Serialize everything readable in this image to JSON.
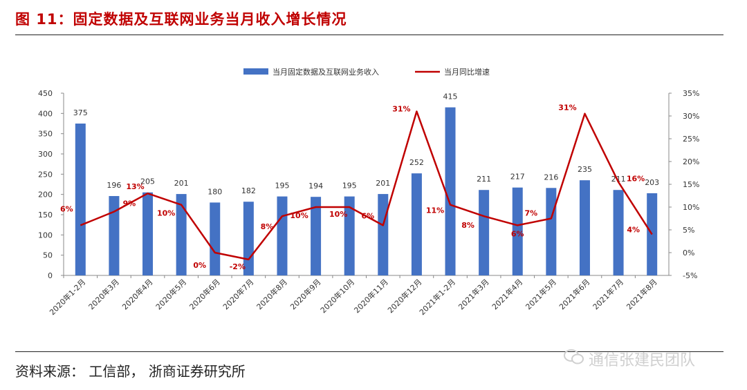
{
  "figure": {
    "title": "图  11：固定数据及互联网业务当月收入增长情况",
    "source": "资料来源：  工信部，  浙商证券研究所",
    "watermark": "通信张建民团队"
  },
  "chart_data": {
    "type": "bar",
    "categories": [
      "2020年1-2月",
      "2020年3月",
      "2020年4月",
      "2020年5月",
      "2020年6月",
      "2020年7月",
      "2020年8月",
      "2020年9月",
      "2020年10月",
      "2020年11月",
      "2020年12月",
      "2021年1-2月",
      "2021年3月",
      "2021年4月",
      "2021年5月",
      "2021年6月",
      "2021年7月",
      "2021年8月"
    ],
    "series": [
      {
        "name": "当月固定数据及互联网业务收入",
        "type": "bar",
        "axis": "left",
        "color": "#4472c4",
        "values": [
          375,
          196,
          205,
          201,
          180,
          182,
          195,
          194,
          195,
          201,
          252,
          415,
          211,
          217,
          216,
          235,
          211,
          203
        ],
        "labels": [
          "375",
          "196",
          "205",
          "201",
          "180",
          "182",
          "195",
          "194",
          "195",
          "201",
          "252",
          "415",
          "211",
          "217",
          "216",
          "235",
          "211",
          "203"
        ]
      },
      {
        "name": "当月同比增速",
        "type": "line",
        "axis": "right",
        "color": "#c00000",
        "values": [
          6,
          9,
          13,
          10.5,
          0,
          -1.5,
          8,
          10,
          10,
          6,
          31,
          10.5,
          8,
          6,
          7.5,
          30.5,
          15.5,
          4
        ],
        "labels": [
          "6%",
          "9%",
          "13%",
          "10%",
          "0%",
          "-2%",
          "8%",
          "10%",
          "10%",
          "6%",
          "31%",
          "11%",
          "8%",
          "6%",
          "7%",
          "31%",
          "16%",
          "4%"
        ]
      }
    ],
    "ylim": [
      0,
      450
    ],
    "y_ticks": [
      "0",
      "50",
      "100",
      "150",
      "200",
      "250",
      "300",
      "350",
      "400",
      "450"
    ],
    "y2lim": [
      -5,
      35
    ],
    "y2_ticks": [
      "-5%",
      "0%",
      "5%",
      "10%",
      "15%",
      "20%",
      "25%",
      "30%",
      "35%"
    ],
    "grid": false,
    "legend": "top-center"
  }
}
